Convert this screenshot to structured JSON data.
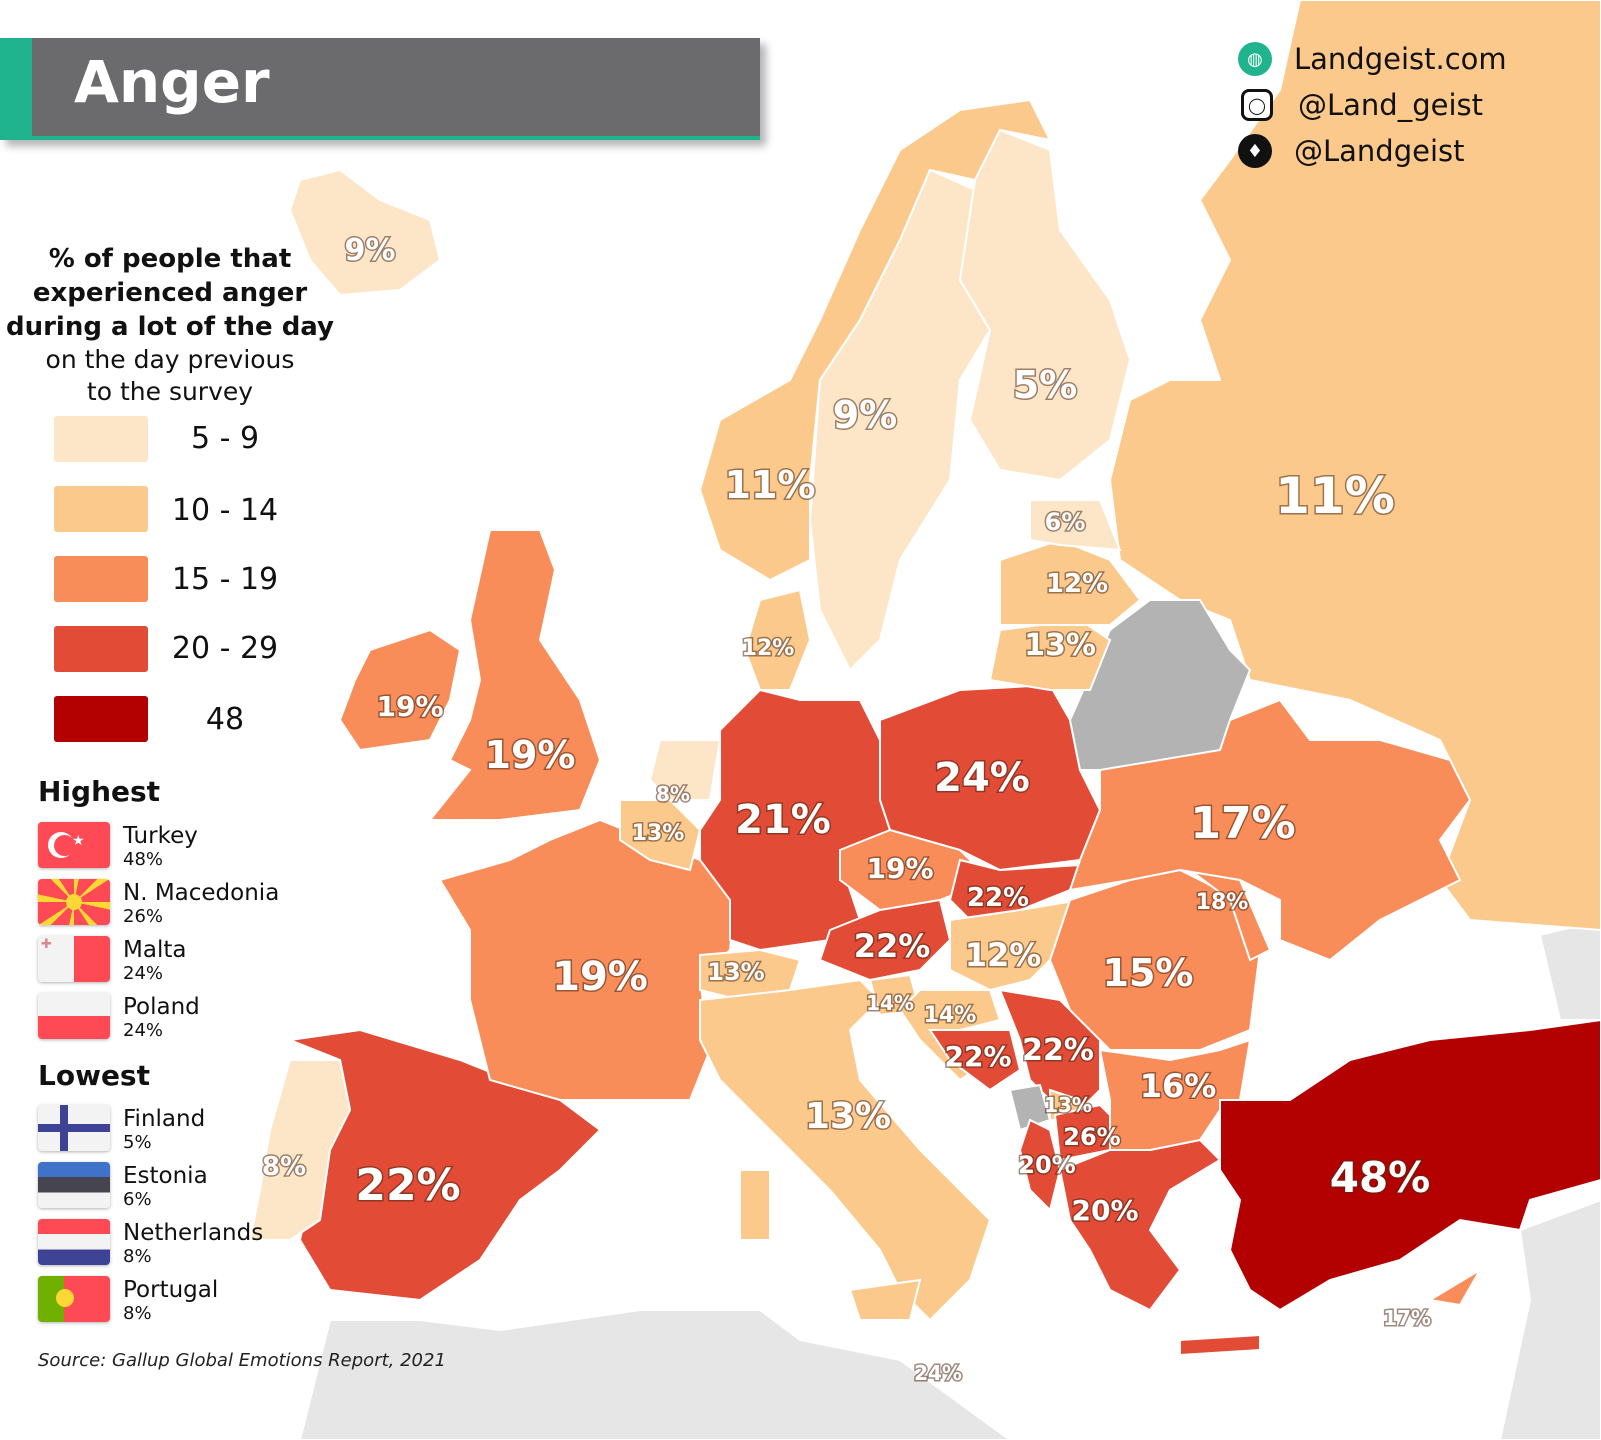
{
  "title": "Anger",
  "social": [
    {
      "icon": "globe-icon",
      "text": "Landgeist.com"
    },
    {
      "icon": "instagram-icon",
      "text": "@Land_geist"
    },
    {
      "icon": "twitter-icon",
      "text": "@Landgeist"
    }
  ],
  "legend": {
    "title_bold": [
      "% of people that",
      "experienced anger",
      "during a lot of the day"
    ],
    "title_regular": [
      "on the day previous",
      "to the survey"
    ],
    "bins": [
      {
        "label": "5  -  9",
        "color": "#fde6c8"
      },
      {
        "label": "10 - 14",
        "color": "#fbc98b"
      },
      {
        "label": "15 - 19",
        "color": "#f88d5a"
      },
      {
        "label": "20 - 29",
        "color": "#e24b35"
      },
      {
        "label": "48",
        "color": "#b30000"
      }
    ],
    "no_data_color": "#b3b3b3",
    "outside_color": "#e6e6e6"
  },
  "highest": {
    "heading": "Highest",
    "items": [
      {
        "name": "Turkey",
        "value": "48%",
        "flag": "turkey-flag"
      },
      {
        "name": "N. Macedonia",
        "value": "26%",
        "flag": "north-macedonia-flag"
      },
      {
        "name": "Malta",
        "value": "24%",
        "flag": "malta-flag"
      },
      {
        "name": "Poland",
        "value": "24%",
        "flag": "poland-flag"
      }
    ]
  },
  "lowest": {
    "heading": "Lowest",
    "items": [
      {
        "name": "Finland",
        "value": "5%",
        "flag": "finland-flag"
      },
      {
        "name": "Estonia",
        "value": "6%",
        "flag": "estonia-flag"
      },
      {
        "name": "Netherlands",
        "value": "8%",
        "flag": "netherlands-flag"
      },
      {
        "name": "Portugal",
        "value": "8%",
        "flag": "portugal-flag"
      }
    ]
  },
  "source": "Source: Gallup Global Emotions Report, 2021",
  "map_labels": [
    "9%",
    "9%",
    "5%",
    "11%",
    "11%",
    "6%",
    "12%",
    "13%",
    "12%",
    "19%",
    "19%",
    "8%",
    "13%",
    "21%",
    "24%",
    "17%",
    "19%",
    "22%",
    "18%",
    "22%",
    "12%",
    "15%",
    "13%",
    "14%",
    "14%",
    "19%",
    "22%",
    "22%",
    "16%",
    "13%",
    "26%",
    "20%",
    "20%",
    "8%",
    "22%",
    "13%",
    "48%",
    "17%",
    "24%"
  ]
}
